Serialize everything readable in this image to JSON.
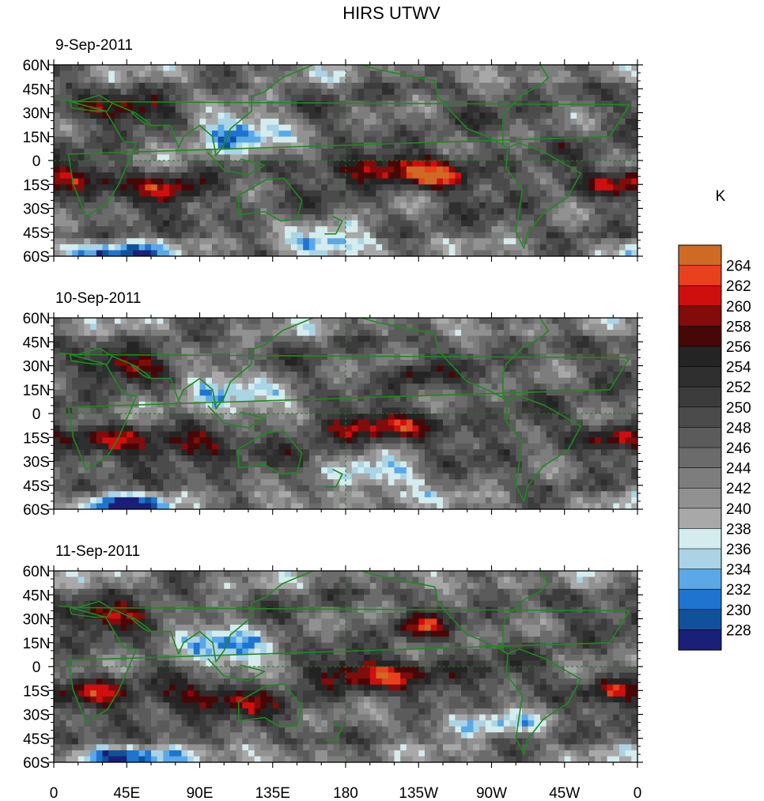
{
  "chart_data": {
    "type": "heatmap",
    "title": "HIRS UTWV",
    "colorbar": {
      "units": "K",
      "tick_labels": [
        "264",
        "262",
        "260",
        "258",
        "256",
        "254",
        "252",
        "250",
        "248",
        "246",
        "244",
        "242",
        "240",
        "238",
        "236",
        "234",
        "232",
        "230",
        "228"
      ],
      "levels": [
        264,
        262,
        260,
        258,
        256,
        254,
        252,
        250,
        248,
        246,
        244,
        242,
        240,
        238,
        236,
        234,
        232,
        230,
        228
      ],
      "colors": [
        "#cf6a24",
        "#e8411e",
        "#cf0f0e",
        "#820c0a",
        "#480707",
        "#242424",
        "#2f2f2f",
        "#3c3c3c",
        "#4b4b4b",
        "#5b5b5b",
        "#6b6b6b",
        "#7d7d7d",
        "#919191",
        "#a8a8a8",
        "#d4ecee",
        "#aad4e6",
        "#5aa8e8",
        "#1e74cf",
        "#11519c",
        "#1a1f78"
      ]
    },
    "x_axis": {
      "tick_labels": [
        "0",
        "45E",
        "90E",
        "135E",
        "180",
        "135W",
        "90W",
        "45W",
        "0"
      ],
      "lon_values": [
        0,
        45,
        90,
        135,
        180,
        225,
        270,
        315,
        360
      ]
    },
    "y_axis": {
      "tick_labels": [
        "60N",
        "45N",
        "30N",
        "15N",
        "0",
        "15S",
        "30S",
        "45S",
        "60S"
      ],
      "lat_values": [
        60,
        45,
        30,
        15,
        0,
        -15,
        -30,
        -45,
        -60
      ]
    },
    "panels": [
      {
        "date": "9-Sep-2011",
        "seed": 1,
        "features": [
          {
            "lon": 40,
            "lat": 32,
            "w": 22,
            "h": 6,
            "v": 12
          },
          {
            "lon": 20,
            "lat": -12,
            "w": 18,
            "h": 6,
            "v": 11
          },
          {
            "lon": 75,
            "lat": -18,
            "w": 18,
            "h": 6,
            "v": 13
          },
          {
            "lon": 200,
            "lat": -5,
            "w": 40,
            "h": 6,
            "v": 12
          },
          {
            "lon": 240,
            "lat": -12,
            "w": 16,
            "h": 5,
            "v": 11
          },
          {
            "lon": 345,
            "lat": -15,
            "w": 16,
            "h": 5,
            "v": 11
          },
          {
            "lon": 115,
            "lat": 15,
            "w": 25,
            "h": 12,
            "v": -14
          },
          {
            "lon": 170,
            "lat": -48,
            "w": 20,
            "h": 8,
            "v": -12
          },
          {
            "lon": 30,
            "lat": -57,
            "w": 25,
            "h": 4,
            "v": -16
          }
        ]
      },
      {
        "date": "10-Sep-2011",
        "seed": 2,
        "features": [
          {
            "lon": 45,
            "lat": 30,
            "w": 20,
            "h": 6,
            "v": 11
          },
          {
            "lon": 30,
            "lat": -15,
            "w": 18,
            "h": 6,
            "v": 11
          },
          {
            "lon": 90,
            "lat": -20,
            "w": 22,
            "h": 7,
            "v": 13
          },
          {
            "lon": 200,
            "lat": -8,
            "w": 35,
            "h": 6,
            "v": 12
          },
          {
            "lon": 220,
            "lat": 25,
            "w": 10,
            "h": 5,
            "v": 10
          },
          {
            "lon": 345,
            "lat": -15,
            "w": 14,
            "h": 5,
            "v": 11
          },
          {
            "lon": 110,
            "lat": 10,
            "w": 25,
            "h": 12,
            "v": -13
          },
          {
            "lon": 200,
            "lat": -40,
            "w": 25,
            "h": 8,
            "v": -12
          },
          {
            "lon": 45,
            "lat": -57,
            "w": 25,
            "h": 4,
            "v": -15
          }
        ]
      },
      {
        "date": "11-Sep-2011",
        "seed": 3,
        "features": [
          {
            "lon": 40,
            "lat": 32,
            "w": 22,
            "h": 6,
            "v": 12
          },
          {
            "lon": 25,
            "lat": -15,
            "w": 16,
            "h": 6,
            "v": 11
          },
          {
            "lon": 95,
            "lat": -20,
            "w": 25,
            "h": 7,
            "v": 14
          },
          {
            "lon": 205,
            "lat": -5,
            "w": 35,
            "h": 7,
            "v": 13
          },
          {
            "lon": 225,
            "lat": 25,
            "w": 12,
            "h": 5,
            "v": 10
          },
          {
            "lon": 345,
            "lat": -15,
            "w": 14,
            "h": 5,
            "v": 11
          },
          {
            "lon": 105,
            "lat": 12,
            "w": 22,
            "h": 12,
            "v": -15
          },
          {
            "lon": 260,
            "lat": -35,
            "w": 30,
            "h": 6,
            "v": -12
          },
          {
            "lon": 60,
            "lat": -57,
            "w": 30,
            "h": 4,
            "v": -14
          }
        ]
      }
    ]
  }
}
